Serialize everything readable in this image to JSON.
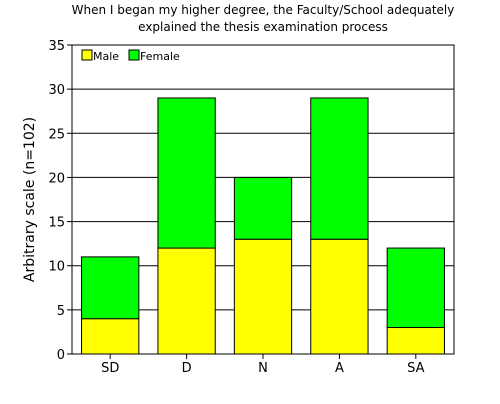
{
  "chart_data": {
    "type": "bar",
    "stacked": true,
    "title": [
      "When I began my higher degree, the Faculty/School adequately",
      "explained the thesis examination process"
    ],
    "xlabel": "",
    "ylabel": "Arbitrary scale (n=102)",
    "categories": [
      "SD",
      "D",
      "N",
      "A",
      "SA"
    ],
    "series": [
      {
        "name": "Male",
        "color": "#ffff00",
        "values": [
          4,
          12,
          13,
          13,
          3
        ]
      },
      {
        "name": "Female",
        "color": "#00ff00",
        "values": [
          7,
          17,
          7,
          16,
          9
        ]
      }
    ],
    "ylim": [
      0,
      35
    ],
    "yticks": [
      0,
      5,
      10,
      15,
      20,
      25,
      30,
      35
    ],
    "grid": true,
    "legend_position": "top-left"
  }
}
